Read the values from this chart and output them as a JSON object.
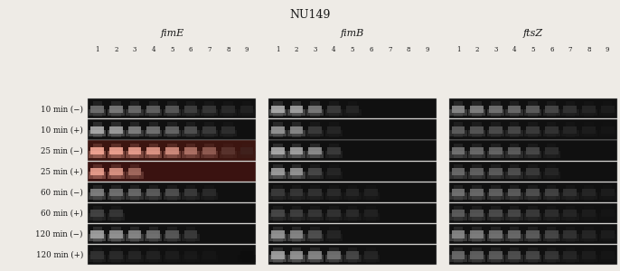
{
  "title": "NU149",
  "gene_labels": [
    "fimE",
    "fimB",
    "ftsZ"
  ],
  "row_labels": [
    "10 min (−)",
    "10 min (+)",
    "25 min (−)",
    "25 min (+)",
    "60 min (−)",
    "60 min (+)",
    "120 min (−)",
    "120 min (+)"
  ],
  "n_lanes": 9,
  "n_rows": 8,
  "n_panels": 3,
  "figure_bg": "#eeebe6",
  "panel_configs": [
    {
      "name": "fimE",
      "row_bgs": [
        "#101010",
        "#101010",
        "#3c1510",
        "#3a1210",
        "#101010",
        "#101010",
        "#101010",
        "#101010"
      ],
      "rows": [
        {
          "lanes": [
            1,
            2,
            3,
            4,
            5,
            6,
            7,
            8,
            9
          ],
          "intensities": [
            0.52,
            0.58,
            0.5,
            0.46,
            0.42,
            0.3,
            0.26,
            0.2,
            0.16
          ]
        },
        {
          "lanes": [
            1,
            2,
            3,
            4,
            5,
            6,
            7,
            8
          ],
          "intensities": [
            0.8,
            0.74,
            0.6,
            0.54,
            0.48,
            0.38,
            0.28,
            0.22
          ]
        },
        {
          "lanes": [
            1,
            2,
            3,
            4,
            5,
            6,
            7,
            8,
            9
          ],
          "intensities": [
            0.9,
            0.88,
            0.86,
            0.82,
            0.76,
            0.62,
            0.5,
            0.28,
            0.18
          ]
        },
        {
          "lanes": [
            1,
            2,
            3
          ],
          "intensities": [
            0.86,
            0.8,
            0.58
          ]
        },
        {
          "lanes": [
            1,
            2,
            3,
            4,
            5,
            6,
            7
          ],
          "intensities": [
            0.6,
            0.54,
            0.5,
            0.44,
            0.38,
            0.28,
            0.2
          ]
        },
        {
          "lanes": [
            1,
            2
          ],
          "intensities": [
            0.32,
            0.26
          ]
        },
        {
          "lanes": [
            1,
            2,
            3,
            4,
            5,
            6
          ],
          "intensities": [
            0.76,
            0.7,
            0.64,
            0.54,
            0.42,
            0.28
          ]
        },
        {
          "lanes": [
            1,
            2,
            3,
            4,
            5,
            6,
            7,
            8,
            9
          ],
          "intensities": [
            0.24,
            0.2,
            0.18,
            0.16,
            0.14,
            0.12,
            0.1,
            0.08,
            0.06
          ]
        }
      ]
    },
    {
      "name": "fimB",
      "row_bgs": [
        "#101010",
        "#101010",
        "#101010",
        "#101010",
        "#101010",
        "#101010",
        "#101010",
        "#101010"
      ],
      "rows": [
        {
          "lanes": [
            1,
            2,
            3,
            4,
            5
          ],
          "intensities": [
            0.8,
            0.76,
            0.58,
            0.28,
            0.18
          ]
        },
        {
          "lanes": [
            1,
            2,
            3,
            4
          ],
          "intensities": [
            0.7,
            0.64,
            0.28,
            0.18
          ]
        },
        {
          "lanes": [
            1,
            2,
            3,
            4
          ],
          "intensities": [
            0.8,
            0.76,
            0.66,
            0.28
          ]
        },
        {
          "lanes": [
            1,
            2,
            3,
            4
          ],
          "intensities": [
            0.74,
            0.7,
            0.34,
            0.18
          ]
        },
        {
          "lanes": [
            1,
            2,
            3,
            4,
            5,
            6
          ],
          "intensities": [
            0.28,
            0.26,
            0.24,
            0.2,
            0.18,
            0.16
          ]
        },
        {
          "lanes": [
            1,
            2,
            3,
            4,
            5,
            6
          ],
          "intensities": [
            0.34,
            0.3,
            0.26,
            0.24,
            0.2,
            0.16
          ]
        },
        {
          "lanes": [
            1,
            2,
            3,
            4
          ],
          "intensities": [
            0.7,
            0.64,
            0.38,
            0.18
          ]
        },
        {
          "lanes": [
            1,
            2,
            3,
            4,
            5,
            6
          ],
          "intensities": [
            0.76,
            0.7,
            0.64,
            0.54,
            0.34,
            0.18
          ]
        }
      ]
    },
    {
      "name": "ftsZ",
      "row_bgs": [
        "#101010",
        "#101010",
        "#101010",
        "#101010",
        "#101010",
        "#101010",
        "#101010",
        "#101010"
      ],
      "rows": [
        {
          "lanes": [
            1,
            2,
            3,
            4,
            5,
            6,
            7,
            8,
            9
          ],
          "intensities": [
            0.64,
            0.6,
            0.54,
            0.5,
            0.44,
            0.34,
            0.24,
            0.18,
            0.14
          ]
        },
        {
          "lanes": [
            1,
            2,
            3,
            4,
            5,
            6,
            7,
            8,
            9
          ],
          "intensities": [
            0.44,
            0.4,
            0.36,
            0.34,
            0.28,
            0.24,
            0.18,
            0.14,
            0.1
          ]
        },
        {
          "lanes": [
            1,
            2,
            3,
            4,
            5,
            6
          ],
          "intensities": [
            0.54,
            0.5,
            0.48,
            0.44,
            0.34,
            0.22
          ]
        },
        {
          "lanes": [
            1,
            2,
            3,
            4,
            5,
            6
          ],
          "intensities": [
            0.5,
            0.46,
            0.44,
            0.38,
            0.28,
            0.18
          ]
        },
        {
          "lanes": [
            1,
            2,
            3,
            4,
            5,
            6,
            7,
            8,
            9
          ],
          "intensities": [
            0.54,
            0.5,
            0.46,
            0.44,
            0.38,
            0.32,
            0.24,
            0.18,
            0.14
          ]
        },
        {
          "lanes": [
            1,
            2,
            3,
            4,
            5,
            6,
            7,
            8,
            9
          ],
          "intensities": [
            0.44,
            0.4,
            0.36,
            0.34,
            0.28,
            0.22,
            0.18,
            0.14,
            0.1
          ]
        },
        {
          "lanes": [
            1,
            2,
            3,
            4,
            5,
            6,
            7,
            8,
            9
          ],
          "intensities": [
            0.64,
            0.6,
            0.54,
            0.5,
            0.44,
            0.34,
            0.24,
            0.18,
            0.14
          ]
        },
        {
          "lanes": [
            1,
            2,
            3,
            4,
            5,
            6,
            7,
            8,
            9
          ],
          "intensities": [
            0.5,
            0.46,
            0.44,
            0.38,
            0.34,
            0.26,
            0.18,
            0.14,
            0.1
          ]
        }
      ]
    }
  ]
}
